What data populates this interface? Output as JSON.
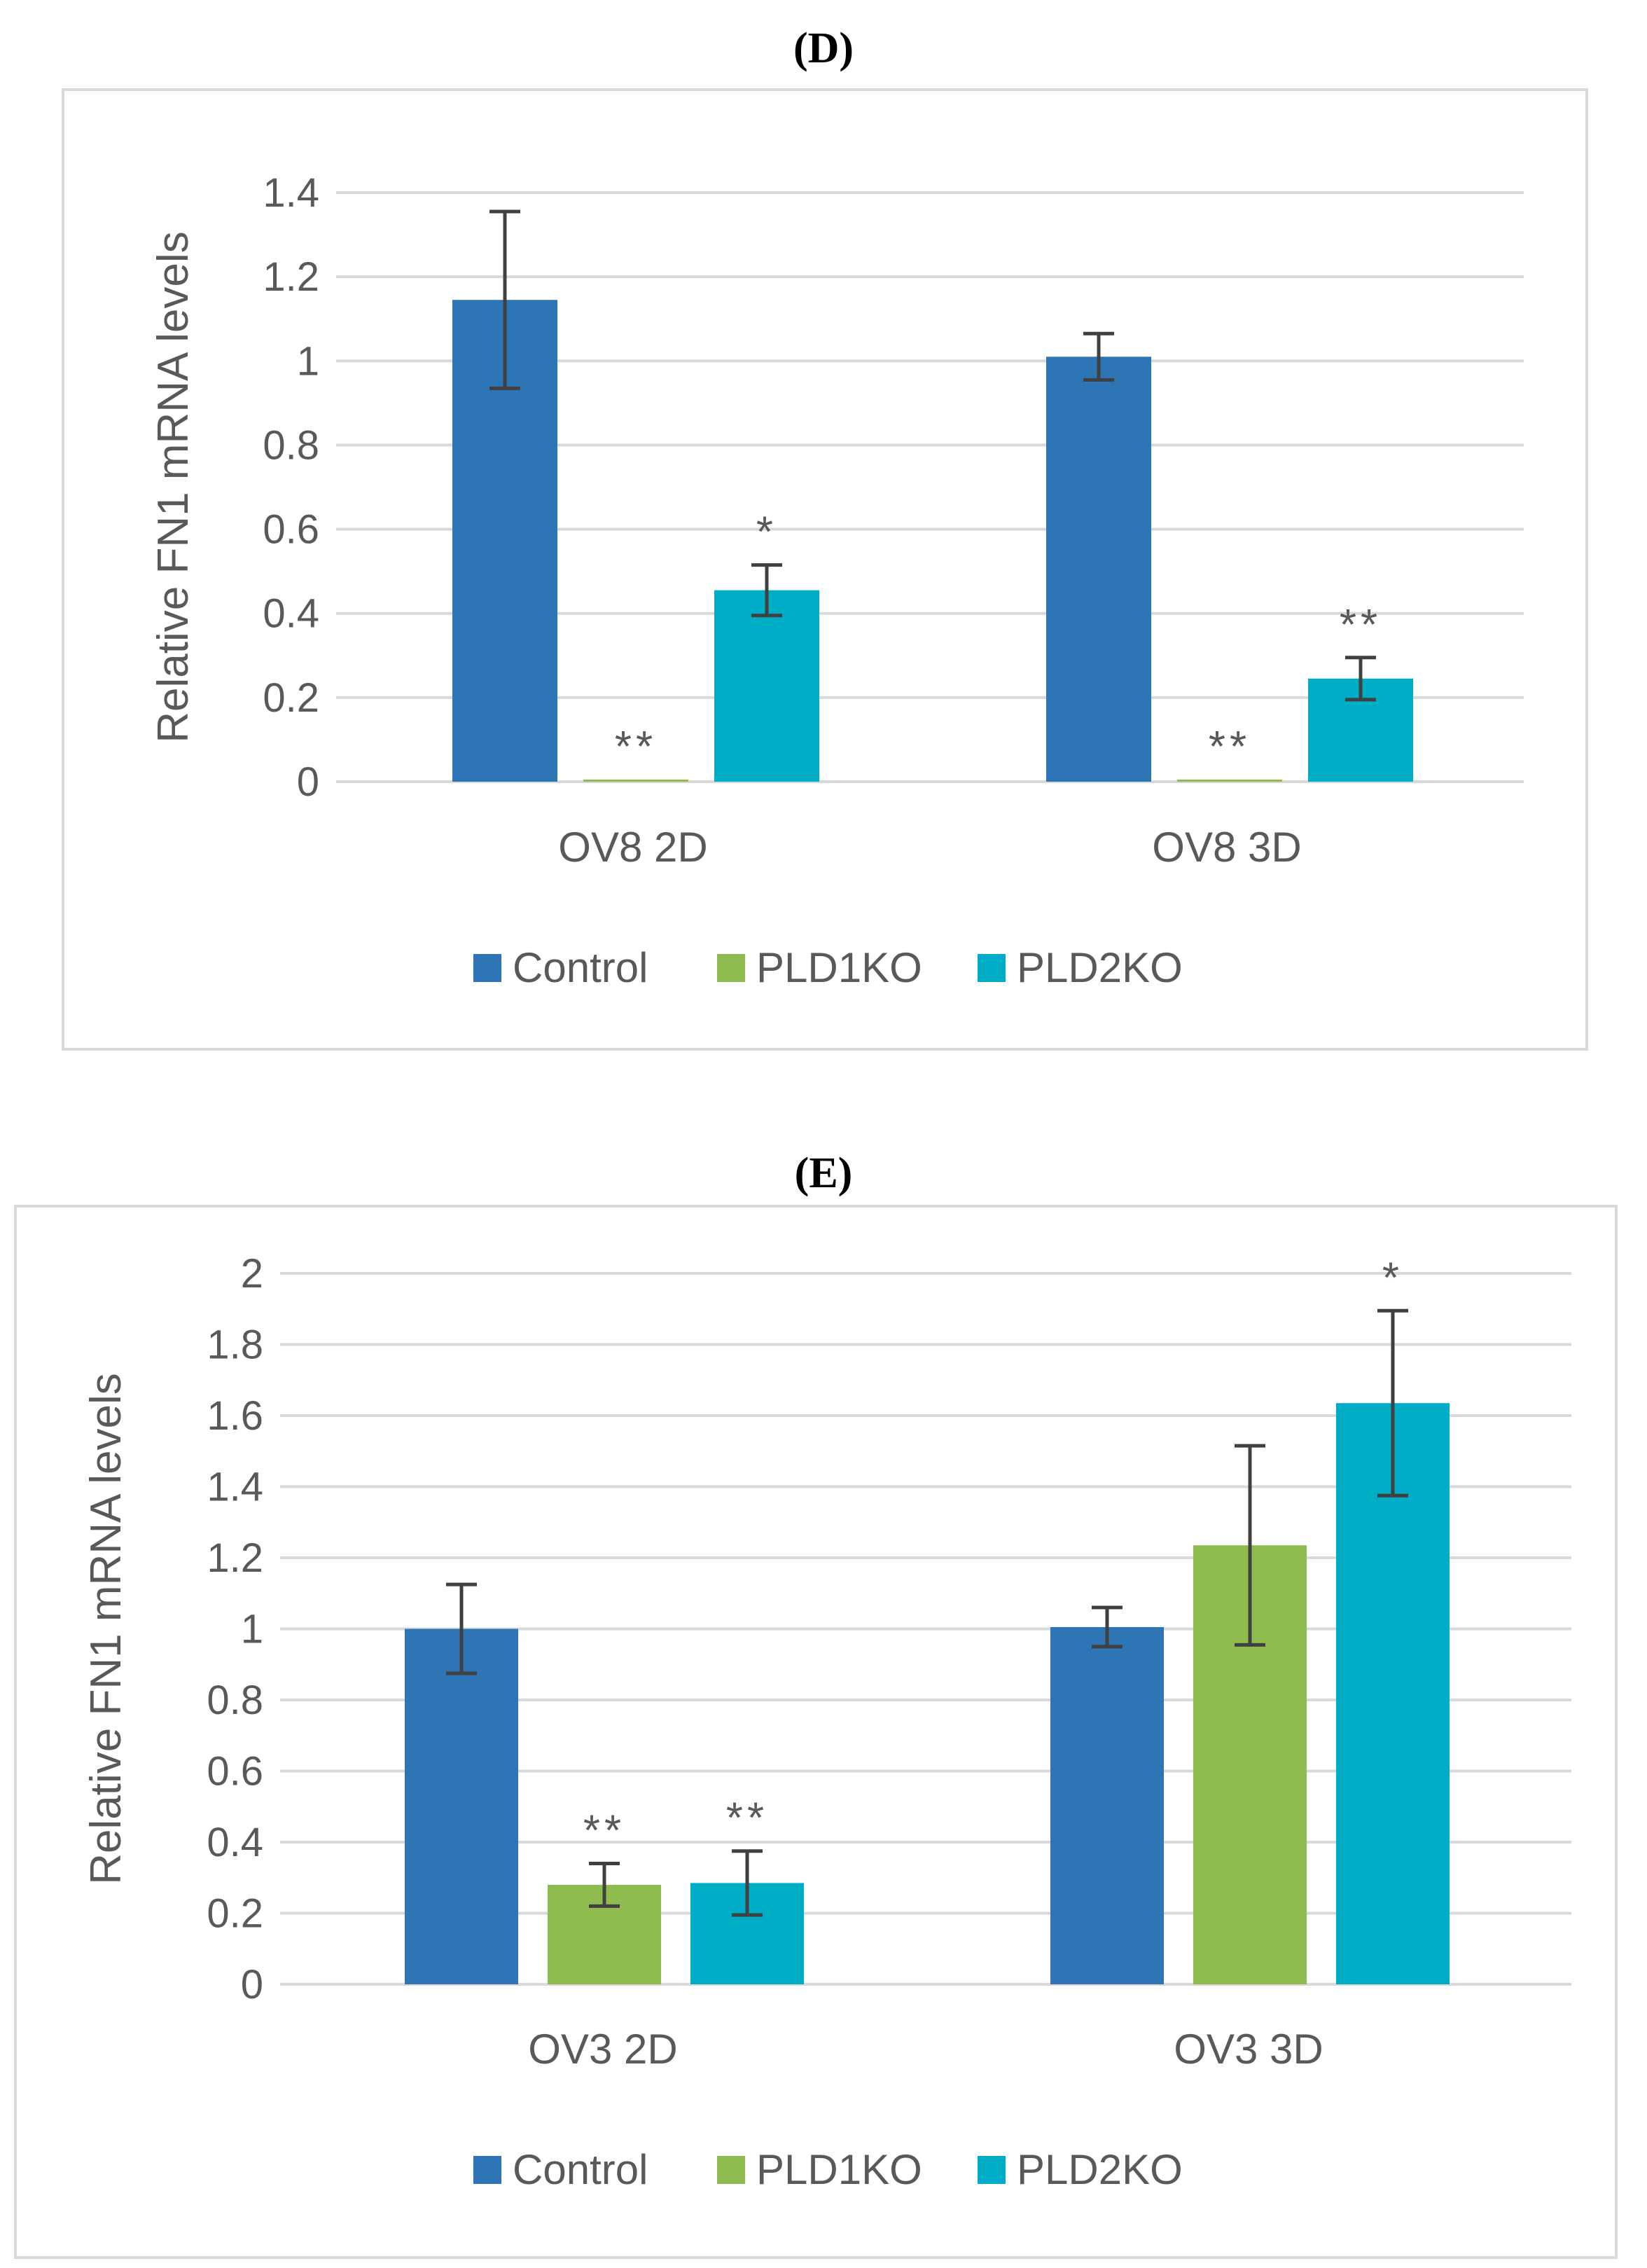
{
  "chart_data": [
    {
      "type": "bar",
      "title": "(D)",
      "ylabel": "Relative FN1 mRNA levels",
      "xlabel": "",
      "ylim": [
        0,
        1.4
      ],
      "ytick_step": 0.2,
      "yticks": [
        "0",
        "0.2",
        "0.4",
        "0.6",
        "0.8",
        "1",
        "1.2",
        "1.4"
      ],
      "grid": true,
      "legend_position": "bottom",
      "categories": [
        "OV8 2D",
        "OV8 3D"
      ],
      "series": [
        {
          "name": "Control",
          "color": "#2e75b6",
          "values": [
            1.145,
            1.01
          ],
          "errors": [
            0.21,
            0.055
          ],
          "marks": [
            "",
            ""
          ]
        },
        {
          "name": "PLD1KO",
          "color": "#8fbc4f",
          "values": [
            0.005,
            0.005
          ],
          "errors": [
            0,
            0
          ],
          "marks": [
            "**",
            "**"
          ]
        },
        {
          "name": "PLD2KO",
          "color": "#00adc6",
          "values": [
            0.455,
            0.245
          ],
          "errors": [
            0.06,
            0.05
          ],
          "marks": [
            "*",
            "**"
          ]
        }
      ]
    },
    {
      "type": "bar",
      "title": "(E)",
      "ylabel": "Relative FN1 mRNA levels",
      "xlabel": "",
      "ylim": [
        0,
        2
      ],
      "ytick_step": 0.2,
      "yticks": [
        "0",
        "0.2",
        "0.4",
        "0.6",
        "0.8",
        "1",
        "1.2",
        "1.4",
        "1.6",
        "1.8",
        "2"
      ],
      "grid": true,
      "legend_position": "bottom",
      "categories": [
        "OV3 2D",
        "OV3 3D"
      ],
      "series": [
        {
          "name": "Control",
          "color": "#2e75b6",
          "values": [
            1.0,
            1.005
          ],
          "errors": [
            0.125,
            0.055
          ],
          "marks": [
            "",
            ""
          ]
        },
        {
          "name": "PLD1KO",
          "color": "#8fbc4f",
          "values": [
            0.28,
            1.235
          ],
          "errors": [
            0.06,
            0.28
          ],
          "marks": [
            "**",
            ""
          ]
        },
        {
          "name": "PLD2KO",
          "color": "#00adc6",
          "values": [
            0.285,
            1.635
          ],
          "errors": [
            0.09,
            0.26
          ],
          "marks": [
            "**",
            "*"
          ]
        }
      ]
    }
  ]
}
